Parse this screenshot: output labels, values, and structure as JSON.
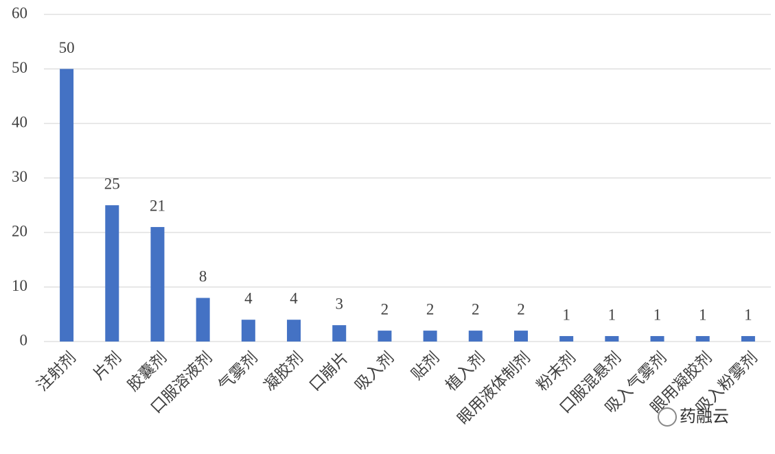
{
  "chart_data": {
    "type": "bar",
    "categories": [
      "注射剂",
      "片剂",
      "胶囊剂",
      "口服溶液剂",
      "气雾剂",
      "凝胶剂",
      "口崩片",
      "吸入剂",
      "贴剂",
      "植入剂",
      "眼用液体制剂",
      "粉末剂",
      "口服混悬剂",
      "吸入气雾剂",
      "眼用凝胶剂",
      "吸入粉雾剂"
    ],
    "values": [
      50,
      25,
      21,
      8,
      4,
      4,
      3,
      2,
      2,
      2,
      2,
      1,
      1,
      1,
      1,
      1
    ],
    "color": "#4472c4",
    "ylim": [
      0,
      60
    ],
    "yticks": [
      0,
      10,
      20,
      30,
      40,
      50,
      60
    ],
    "grid": true,
    "watermark": "药融云"
  }
}
